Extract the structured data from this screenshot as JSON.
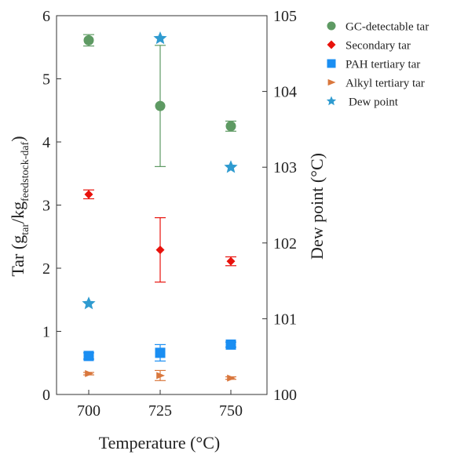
{
  "chart_data": {
    "type": "scatter",
    "title": "",
    "xlabel": "Temperature (°C)",
    "ylabel_left_parts": [
      "Tar (g",
      "tar",
      "/kg",
      "feedstock-daf",
      ")"
    ],
    "ylabel_right": "Dew point (°C)",
    "categories": [
      "700",
      "725",
      "750"
    ],
    "x": [
      700,
      725,
      750
    ],
    "ylim_left": [
      0,
      6
    ],
    "yticks_left": [
      "0",
      "1",
      "2",
      "3",
      "4",
      "5",
      "6"
    ],
    "ylim_right": [
      100,
      105
    ],
    "yticks_right": [
      "100",
      "101",
      "102",
      "103",
      "104",
      "105"
    ],
    "grid": false,
    "legend_position": "top-right outside",
    "series": [
      {
        "name": "GC-detectable tar",
        "axis": "left",
        "marker": "circle",
        "color": "#5e9a63",
        "values": [
          5.61,
          4.57,
          4.25
        ],
        "err": [
          0.09,
          0.96,
          0.08
        ]
      },
      {
        "name": "Secondary tar",
        "axis": "left",
        "marker": "diamond",
        "color": "#e8120c",
        "values": [
          3.17,
          2.29,
          2.11
        ],
        "err": [
          0.07,
          0.51,
          0.07
        ]
      },
      {
        "name": "PAH tertiary tar",
        "axis": "left",
        "marker": "square",
        "color": "#1a8ef2",
        "values": [
          0.61,
          0.66,
          0.79
        ],
        "err": [
          0.05,
          0.13,
          0.04
        ]
      },
      {
        "name": "Alkyl tertiary tar",
        "axis": "left",
        "marker": "triangle-right",
        "color": "#d9773d",
        "values": [
          0.33,
          0.3,
          0.26
        ],
        "err": [
          0.02,
          0.08,
          0.02
        ]
      },
      {
        "name": "Dew point",
        "axis": "right",
        "marker": "star",
        "color": "#2f9bd0",
        "values": [
          101.2,
          104.7,
          103.0
        ],
        "err": [
          0,
          0,
          0
        ]
      }
    ]
  }
}
